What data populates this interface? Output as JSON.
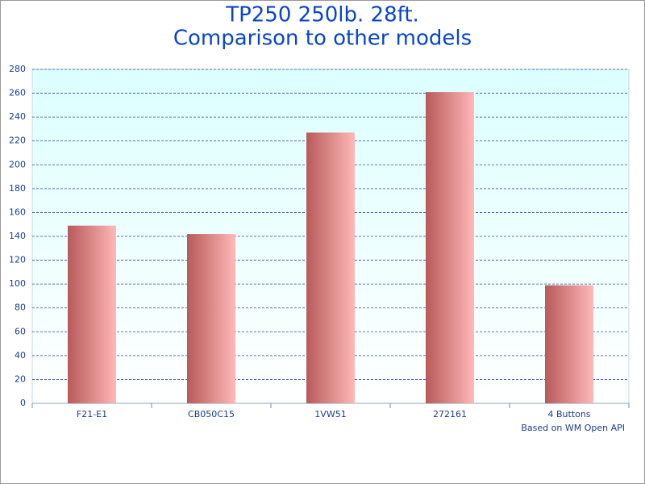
{
  "chart_data": {
    "type": "bar",
    "title": "TP250 250lb. 28ft.",
    "subtitle": "Comparison to other models",
    "categories": [
      "F21-E1",
      "CB050C15",
      "1VW51",
      "272161",
      "4 Buttons"
    ],
    "values": [
      149,
      142,
      227,
      261,
      99
    ],
    "color": "#c06060",
    "ylim": [
      0,
      280
    ],
    "yticks": [
      0,
      20,
      40,
      60,
      80,
      100,
      120,
      140,
      160,
      180,
      200,
      220,
      240,
      260,
      280
    ],
    "grid": true,
    "annotation": "Based on WM Open API"
  }
}
